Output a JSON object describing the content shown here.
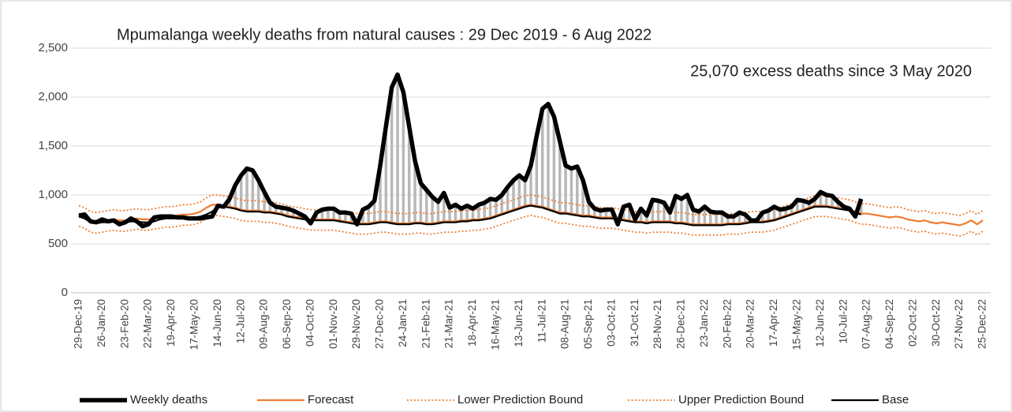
{
  "chart_data": {
    "type": "line",
    "title": "Mpumalanga weekly deaths from natural causes : 29 Dec 2019 - 6 Aug 2022",
    "annotation": "25,070 excess deaths since 3 May 2020",
    "ylim": [
      0,
      2500
    ],
    "yticks": [
      0,
      500,
      {
        "value": 1000,
        "label": "1,000"
      },
      {
        "value": 1500,
        "label": "1,500"
      },
      {
        "value": 2000,
        "label": "2,000"
      },
      {
        "value": 2500,
        "label": "2,500"
      }
    ],
    "grid": true,
    "legend": "bottom",
    "categories": [
      "29-Dec-19",
      null,
      null,
      null,
      "26-Jan-20",
      null,
      null,
      null,
      "23-Feb-20",
      null,
      null,
      null,
      "22-Mar-20",
      null,
      null,
      null,
      "19-Apr-20",
      null,
      null,
      null,
      "17-May-20",
      null,
      null,
      null,
      "14-Jun-20",
      null,
      null,
      null,
      "12-Jul-20",
      null,
      null,
      null,
      "09-Aug-20",
      null,
      null,
      null,
      "06-Sep-20",
      null,
      null,
      null,
      "04-Oct-20",
      null,
      null,
      null,
      "01-Nov-20",
      null,
      null,
      null,
      "29-Nov-20",
      null,
      null,
      null,
      "27-Dec-20",
      null,
      null,
      null,
      "24-Jan-21",
      null,
      null,
      null,
      "21-Feb-21",
      null,
      null,
      null,
      "21-Mar-21",
      null,
      null,
      null,
      "18-Apr-21",
      null,
      null,
      null,
      "16-May-21",
      null,
      null,
      null,
      "13-Jun-21",
      null,
      null,
      null,
      "11-Jul-21",
      null,
      null,
      null,
      "08-Aug-21",
      null,
      null,
      null,
      "05-Sep-21",
      null,
      null,
      null,
      "03-Oct-21",
      null,
      null,
      null,
      "31-Oct-21",
      null,
      null,
      null,
      "28-Nov-21",
      null,
      null,
      null,
      "26-Dec-21",
      null,
      null,
      null,
      "23-Jan-22",
      null,
      null,
      null,
      "20-Feb-22",
      null,
      null,
      null,
      "20-Mar-22",
      null,
      null,
      null,
      "17-Apr-22",
      null,
      null,
      null,
      "15-May-22",
      null,
      null,
      null,
      "12-Jun-22",
      null,
      null,
      null,
      "10-Jul-22",
      null,
      null,
      null,
      "07-Aug-22",
      null,
      null,
      null,
      "04-Sep-22",
      null,
      null,
      null,
      "02-Oct-22",
      null,
      null,
      null,
      "30-Oct-22",
      null,
      null,
      null,
      "27-Nov-22",
      null,
      null,
      null,
      "25-Dec-22"
    ],
    "series": [
      {
        "name": "Weekly deaths",
        "color": "#000000",
        "values": [
          790,
          800,
          730,
          720,
          750,
          730,
          740,
          700,
          720,
          760,
          730,
          680,
          700,
          770,
          780,
          780,
          780,
          770,
          770,
          760,
          760,
          760,
          770,
          780,
          890,
          880,
          960,
          1100,
          1200,
          1270,
          1250,
          1150,
          1030,
          920,
          880,
          870,
          860,
          840,
          810,
          780,
          710,
          820,
          850,
          860,
          860,
          820,
          820,
          810,
          700,
          850,
          880,
          940,
          1300,
          1700,
          2100,
          2230,
          2050,
          1700,
          1350,
          1120,
          1050,
          980,
          930,
          1020,
          870,
          900,
          860,
          890,
          860,
          900,
          920,
          960,
          950,
          1000,
          1080,
          1150,
          1200,
          1150,
          1300,
          1600,
          1880,
          1930,
          1800,
          1550,
          1300,
          1270,
          1290,
          1150,
          930,
          860,
          840,
          850,
          850,
          700,
          880,
          900,
          750,
          860,
          790,
          950,
          940,
          920,
          820,
          990,
          960,
          1000,
          850,
          830,
          880,
          830,
          820,
          820,
          780,
          780,
          820,
          800,
          740,
          740,
          820,
          840,
          880,
          850,
          860,
          880,
          950,
          940,
          920,
          960,
          1030,
          1000,
          990,
          930,
          880,
          860,
          780,
          960,
          null,
          null,
          null,
          null,
          null,
          null,
          null,
          null,
          null,
          null,
          null,
          null,
          null,
          null,
          null,
          null,
          null,
          null,
          null,
          null,
          null
        ]
      },
      {
        "name": "Forecast",
        "color": "#ed7d31",
        "values": [
          790,
          770,
          730,
          720,
          730,
          740,
          750,
          740,
          740,
          750,
          760,
          750,
          750,
          760,
          770,
          780,
          780,
          790,
          800,
          800,
          810,
          830,
          870,
          900,
          900,
          890,
          880,
          870,
          850,
          840,
          840,
          840,
          830,
          830,
          820,
          810,
          790,
          780,
          770,
          760,
          750,
          750,
          750,
          750,
          750,
          740,
          730,
          720,
          710,
          710,
          710,
          720,
          730,
          730,
          720,
          710,
          710,
          710,
          720,
          720,
          710,
          710,
          720,
          730,
          730,
          730,
          740,
          740,
          750,
          750,
          760,
          770,
          790,
          810,
          830,
          850,
          870,
          890,
          900,
          890,
          880,
          860,
          840,
          820,
          820,
          810,
          800,
          790,
          790,
          780,
          770,
          770,
          770,
          760,
          750,
          740,
          730,
          730,
          720,
          730,
          730,
          730,
          730,
          720,
          720,
          710,
          700,
          700,
          700,
          700,
          700,
          700,
          710,
          710,
          710,
          720,
          730,
          730,
          730,
          740,
          750,
          770,
          790,
          810,
          830,
          850,
          870,
          890,
          890,
          890,
          880,
          870,
          860,
          850,
          830,
          810,
          810,
          800,
          790,
          780,
          770,
          780,
          770,
          750,
          740,
          730,
          740,
          720,
          710,
          720,
          710,
          700,
          690,
          710,
          740,
          700,
          740
        ]
      },
      {
        "name": "Lower Prediction Bound",
        "color": "#ed7d31",
        "values": [
          680,
          660,
          620,
          610,
          620,
          630,
          640,
          630,
          630,
          640,
          650,
          640,
          640,
          650,
          660,
          670,
          670,
          680,
          690,
          690,
          700,
          720,
          760,
          790,
          790,
          780,
          770,
          760,
          740,
          730,
          730,
          730,
          720,
          720,
          710,
          700,
          680,
          670,
          660,
          650,
          640,
          640,
          640,
          640,
          640,
          630,
          620,
          610,
          600,
          600,
          600,
          610,
          620,
          620,
          610,
          600,
          600,
          600,
          610,
          610,
          600,
          600,
          610,
          620,
          620,
          620,
          630,
          630,
          640,
          640,
          650,
          660,
          680,
          700,
          720,
          740,
          760,
          780,
          790,
          780,
          770,
          750,
          730,
          710,
          710,
          700,
          690,
          680,
          680,
          670,
          660,
          660,
          660,
          650,
          640,
          630,
          620,
          620,
          610,
          620,
          620,
          620,
          620,
          610,
          610,
          600,
          590,
          590,
          590,
          590,
          590,
          590,
          600,
          600,
          600,
          610,
          620,
          620,
          620,
          630,
          640,
          660,
          680,
          700,
          720,
          740,
          760,
          780,
          780,
          780,
          770,
          760,
          750,
          740,
          720,
          700,
          700,
          690,
          680,
          670,
          660,
          670,
          660,
          640,
          630,
          620,
          630,
          610,
          600,
          610,
          600,
          590,
          580,
          600,
          630,
          590,
          630
        ]
      },
      {
        "name": "Upper Prediction Bound",
        "color": "#ed7d31",
        "values": [
          890,
          870,
          830,
          820,
          830,
          840,
          850,
          840,
          840,
          850,
          860,
          850,
          850,
          860,
          870,
          880,
          880,
          890,
          900,
          900,
          910,
          930,
          970,
          1000,
          1000,
          990,
          980,
          970,
          950,
          940,
          940,
          940,
          930,
          930,
          920,
          910,
          890,
          880,
          870,
          860,
          850,
          850,
          850,
          850,
          850,
          840,
          830,
          820,
          810,
          810,
          810,
          820,
          830,
          830,
          820,
          810,
          810,
          810,
          820,
          820,
          810,
          810,
          820,
          830,
          830,
          830,
          840,
          840,
          850,
          850,
          860,
          870,
          890,
          910,
          930,
          950,
          970,
          990,
          1000,
          990,
          980,
          960,
          940,
          920,
          920,
          910,
          900,
          890,
          890,
          880,
          870,
          870,
          870,
          860,
          850,
          840,
          830,
          830,
          820,
          830,
          830,
          830,
          830,
          820,
          820,
          810,
          800,
          800,
          800,
          800,
          800,
          800,
          810,
          810,
          810,
          820,
          830,
          830,
          830,
          840,
          850,
          870,
          890,
          910,
          930,
          950,
          970,
          990,
          990,
          990,
          980,
          970,
          960,
          950,
          930,
          910,
          910,
          900,
          890,
          880,
          870,
          880,
          870,
          850,
          840,
          830,
          840,
          820,
          810,
          820,
          810,
          800,
          790,
          810,
          840,
          800,
          840
        ]
      },
      {
        "name": "Base",
        "color": "#000000",
        "values": [
          780,
          760,
          720,
          710,
          720,
          720,
          730,
          720,
          720,
          730,
          730,
          720,
          720,
          730,
          750,
          760,
          760,
          760,
          760,
          760,
          770,
          780,
          800,
          830,
          880,
          880,
          870,
          860,
          840,
          830,
          830,
          830,
          820,
          820,
          810,
          800,
          780,
          770,
          760,
          750,
          740,
          740,
          740,
          740,
          740,
          730,
          720,
          710,
          700,
          700,
          700,
          710,
          720,
          720,
          710,
          700,
          700,
          700,
          710,
          710,
          700,
          700,
          710,
          720,
          720,
          720,
          730,
          730,
          740,
          740,
          750,
          760,
          780,
          800,
          820,
          840,
          860,
          880,
          890,
          880,
          870,
          850,
          830,
          810,
          810,
          800,
          790,
          780,
          780,
          770,
          760,
          760,
          760,
          750,
          740,
          730,
          720,
          720,
          710,
          720,
          720,
          720,
          720,
          710,
          710,
          700,
          690,
          690,
          690,
          690,
          690,
          690,
          700,
          700,
          700,
          710,
          720,
          720,
          720,
          730,
          740,
          760,
          780,
          800,
          820,
          840,
          860,
          880,
          880,
          880,
          870,
          860,
          850,
          840,
          820,
          800,
          null,
          null,
          null,
          null,
          null,
          null,
          null,
          null,
          null,
          null,
          null,
          null,
          null,
          null,
          null,
          null,
          null,
          null,
          null,
          null,
          null
        ]
      }
    ]
  }
}
